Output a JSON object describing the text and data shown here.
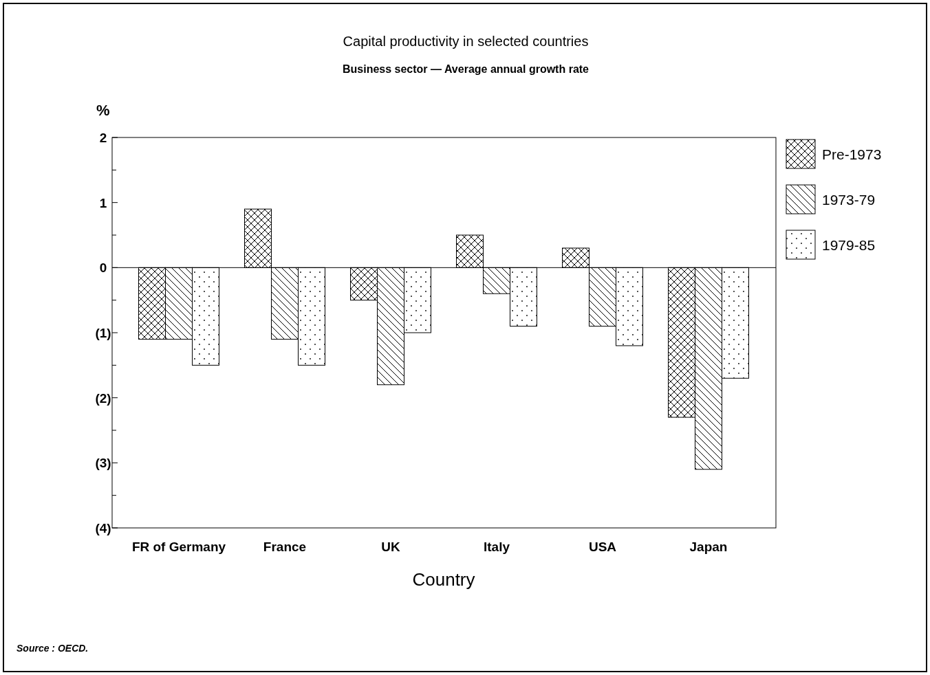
{
  "chart_data": {
    "type": "bar",
    "title": "Capital productivity in selected countries",
    "subtitle": "Business sector — Average annual growth rate",
    "xlabel": "Country",
    "ylabel": "%",
    "categories": [
      "FR of Germany",
      "France",
      "UK",
      "Italy",
      "USA",
      "Japan"
    ],
    "series": [
      {
        "name": "Pre-1973",
        "color": "#000000",
        "values": [
          -1.1,
          0.9,
          -0.5,
          0.5,
          0.3,
          -2.3
        ]
      },
      {
        "name": "1973-79",
        "color": "#000000",
        "values": [
          -1.1,
          -1.1,
          -1.8,
          -0.4,
          -0.9,
          -3.1
        ]
      },
      {
        "name": "1979-85",
        "color": "#000000",
        "values": [
          -1.5,
          -1.5,
          -1.0,
          -0.9,
          -1.2,
          -1.7
        ]
      }
    ],
    "ylim": [
      -4,
      2
    ],
    "yticks": [
      2,
      {
        "value": 1.5,
        "label": null
      },
      1,
      {
        "value": 0.5,
        "label": null
      },
      0,
      {
        "value": -0.5,
        "label": null
      },
      {
        "value": -1,
        "label": "(1)"
      },
      {
        "value": -1.5,
        "label": null
      },
      {
        "value": -2,
        "label": "(2)"
      },
      {
        "value": -2.5,
        "label": null
      },
      {
        "value": -3,
        "label": "(3)"
      },
      {
        "value": -3.5,
        "label": null
      },
      {
        "value": -4,
        "label": "(4)"
      }
    ],
    "ref_lines": [
      {
        "axis": "y",
        "value": 0,
        "label": null,
        "color": "#000000"
      }
    ],
    "legend": "right",
    "annotations": [
      "Source : OECD."
    ]
  }
}
